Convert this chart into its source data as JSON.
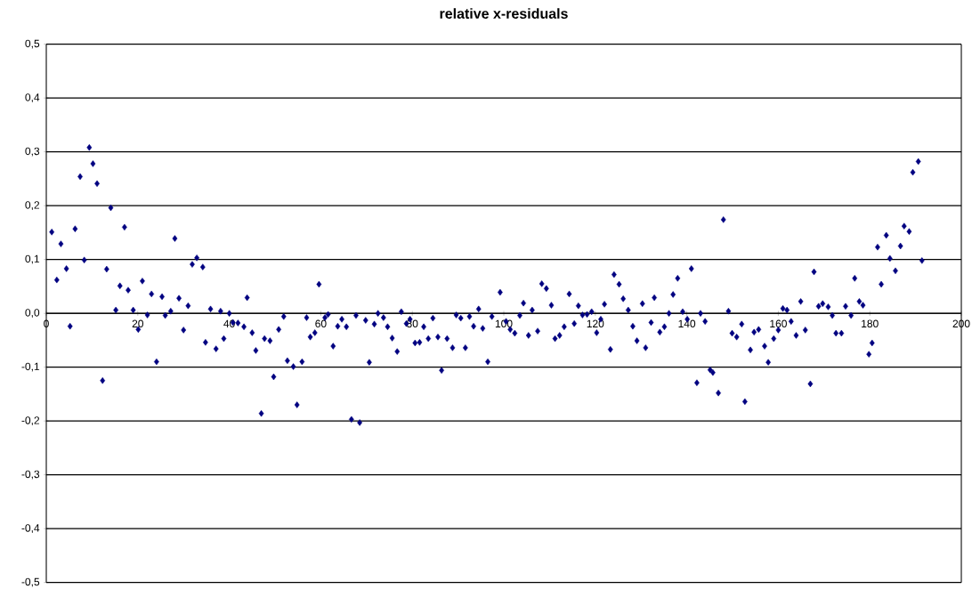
{
  "chart_data": {
    "type": "scatter",
    "title": "relative x-residuals",
    "x": [
      1.2,
      2.3,
      3.2,
      4.4,
      5.2,
      6.3,
      7.4,
      8.3,
      9.4,
      10.2,
      11.1,
      12.3,
      13.2,
      14.1,
      15.2,
      16.1,
      17.1,
      17.9,
      19.0,
      20.1,
      21.0,
      22.1,
      23.0,
      24.1,
      25.3,
      26.0,
      27.2,
      28.1,
      29.0,
      30.0,
      31.0,
      31.9,
      32.9,
      34.2,
      34.8,
      35.9,
      37.1,
      38.1,
      38.8,
      40.0,
      40.8,
      41.9,
      43.2,
      43.9,
      45.0,
      45.8,
      47.0,
      47.7,
      48.9,
      49.7,
      50.8,
      51.9,
      52.7,
      54.0,
      54.8,
      55.9,
      56.9,
      57.7,
      58.7,
      59.6,
      60.9,
      61.6,
      62.7,
      63.7,
      64.6,
      65.6,
      66.7,
      67.7,
      68.5,
      69.8,
      70.6,
      71.7,
      72.5,
      73.7,
      74.6,
      75.6,
      76.7,
      77.6,
      78.7,
      79.5,
      80.6,
      81.6,
      82.5,
      83.5,
      84.5,
      85.6,
      86.4,
      87.6,
      88.8,
      89.6,
      90.6,
      91.6,
      92.5,
      93.4,
      94.5,
      95.4,
      96.5,
      97.4,
      99.2,
      100.5,
      101.4,
      102.4,
      103.5,
      104.3,
      105.4,
      106.2,
      107.4,
      108.3,
      109.3,
      110.4,
      111.2,
      112.2,
      113.2,
      114.3,
      115.4,
      116.3,
      117.2,
      118.2,
      119.2,
      120.3,
      121.2,
      122.0,
      123.3,
      124.1,
      125.2,
      126.1,
      127.2,
      128.2,
      129.1,
      130.3,
      131.0,
      132.2,
      132.9,
      134.1,
      135.1,
      136.1,
      137.0,
      138.0,
      139.1,
      140.1,
      141.0,
      142.2,
      143.0,
      144.0,
      145.1,
      145.7,
      146.9,
      148.0,
      149.1,
      149.9,
      150.9,
      152.0,
      152.7,
      153.9,
      154.7,
      155.7,
      157.0,
      157.8,
      159.0,
      160.0,
      161.0,
      161.9,
      162.8,
      163.9,
      164.9,
      165.9,
      167.0,
      167.8,
      168.8,
      169.7,
      170.9,
      171.8,
      172.6,
      173.8,
      174.7,
      175.9,
      176.7,
      177.7,
      178.5,
      179.8,
      180.5,
      181.7,
      182.5,
      183.6,
      184.4,
      185.6,
      186.7,
      187.5,
      188.6,
      189.4,
      190.6,
      191.4
    ],
    "series": [
      {
        "color": "#000080",
        "values": [
          0.151,
          0.062,
          0.129,
          0.083,
          -0.024,
          0.157,
          0.254,
          0.099,
          0.308,
          0.278,
          0.241,
          -0.125,
          0.082,
          0.196,
          0.006,
          0.051,
          0.16,
          0.043,
          0.006,
          -0.03,
          0.06,
          -0.003,
          0.036,
          -0.09,
          0.031,
          -0.004,
          0.004,
          0.139,
          0.028,
          -0.031,
          0.014,
          0.091,
          0.103,
          0.086,
          -0.054,
          0.008,
          -0.066,
          0.004,
          -0.047,
          0.0,
          -0.017,
          -0.018,
          -0.025,
          0.029,
          -0.036,
          -0.069,
          -0.186,
          -0.047,
          -0.051,
          -0.118,
          -0.03,
          -0.006,
          -0.088,
          -0.099,
          -0.17,
          -0.09,
          -0.008,
          -0.044,
          -0.036,
          0.054,
          -0.008,
          -0.002,
          -0.061,
          -0.024,
          -0.011,
          -0.025,
          -0.197,
          -0.004,
          -0.203,
          -0.013,
          -0.091,
          -0.02,
          0.0,
          -0.008,
          -0.025,
          -0.046,
          -0.071,
          0.003,
          -0.019,
          -0.011,
          -0.055,
          -0.054,
          -0.025,
          -0.047,
          -0.009,
          -0.044,
          -0.106,
          -0.047,
          -0.064,
          -0.003,
          -0.009,
          -0.064,
          -0.006,
          -0.024,
          0.008,
          -0.028,
          -0.09,
          -0.006,
          0.039,
          -0.015,
          -0.03,
          -0.037,
          -0.004,
          0.019,
          -0.041,
          0.006,
          -0.033,
          0.055,
          0.046,
          0.015,
          -0.047,
          -0.041,
          -0.025,
          0.036,
          -0.019,
          0.014,
          -0.003,
          -0.002,
          0.003,
          -0.036,
          -0.011,
          0.017,
          -0.067,
          0.072,
          0.054,
          0.027,
          0.006,
          -0.024,
          -0.051,
          0.018,
          -0.064,
          -0.017,
          0.029,
          -0.035,
          -0.025,
          0.0,
          0.035,
          0.065,
          0.003,
          -0.011,
          0.083,
          -0.129,
          0.0,
          -0.015,
          -0.105,
          -0.11,
          -0.148,
          0.174,
          0.004,
          -0.037,
          -0.044,
          -0.02,
          -0.164,
          -0.068,
          -0.035,
          -0.03,
          -0.061,
          -0.091,
          -0.047,
          -0.031,
          0.009,
          0.006,
          -0.015,
          -0.041,
          0.022,
          -0.031,
          -0.131,
          0.077,
          0.013,
          0.018,
          0.012,
          -0.004,
          -0.037,
          -0.037,
          0.013,
          -0.004,
          0.065,
          0.022,
          0.015,
          -0.076,
          -0.055,
          0.123,
          0.054,
          0.145,
          0.102,
          0.079,
          0.125,
          0.162,
          0.152,
          0.262,
          0.282,
          0.098
        ]
      }
    ],
    "marker": "diamond",
    "grid": "y",
    "xlim": [
      0,
      200
    ],
    "ylim": [
      -0.5,
      0.5
    ],
    "xticks": [
      0,
      20,
      40,
      60,
      80,
      100,
      120,
      140,
      160,
      180,
      200
    ],
    "yticks": [
      {
        "value": -0.5,
        "label": "-0,5"
      },
      {
        "value": -0.4,
        "label": "-0,4"
      },
      {
        "value": -0.3,
        "label": "-0,3"
      },
      {
        "value": -0.2,
        "label": "-0,2"
      },
      {
        "value": -0.1,
        "label": "-0,1"
      },
      {
        "value": 0,
        "label": "0,0"
      },
      {
        "value": 0.1,
        "label": "0,1"
      },
      {
        "value": 0.2,
        "label": "0,2"
      },
      {
        "value": 0.3,
        "label": "0,3"
      },
      {
        "value": 0.4,
        "label": "0,4"
      },
      {
        "value": 0.5,
        "label": "0,5"
      }
    ]
  }
}
